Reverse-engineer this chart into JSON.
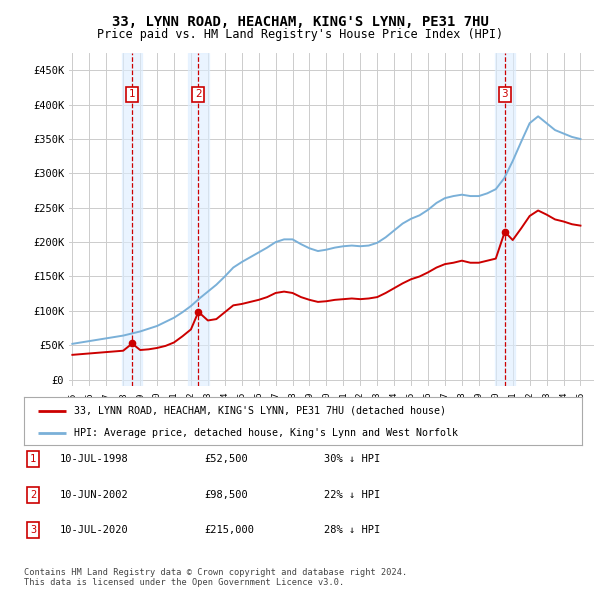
{
  "title": "33, LYNN ROAD, HEACHAM, KING'S LYNN, PE31 7HU",
  "subtitle": "Price paid vs. HM Land Registry's House Price Index (HPI)",
  "yticks": [
    0,
    50000,
    100000,
    150000,
    200000,
    250000,
    300000,
    350000,
    400000,
    450000
  ],
  "ytick_labels": [
    "£0",
    "£50K",
    "£100K",
    "£150K",
    "£200K",
    "£250K",
    "£300K",
    "£350K",
    "£400K",
    "£450K"
  ],
  "xlim_start": 1994.8,
  "xlim_end": 2025.8,
  "ylim_min": -10000,
  "ylim_max": 475000,
  "sale_dates": [
    1998.53,
    2002.44,
    2020.53
  ],
  "sale_prices": [
    52500,
    98500,
    215000
  ],
  "sale_labels": [
    "1",
    "2",
    "3"
  ],
  "sale_label_color": "#cc0000",
  "hpi_color": "#7ab0d8",
  "price_color": "#cc0000",
  "background_color": "#ffffff",
  "grid_color": "#cccccc",
  "shade_color": "#ddeeff",
  "legend_line1": "33, LYNN ROAD, HEACHAM, KING'S LYNN, PE31 7HU (detached house)",
  "legend_line2": "HPI: Average price, detached house, King's Lynn and West Norfolk",
  "table_data": [
    [
      "1",
      "10-JUL-1998",
      "£52,500",
      "30% ↓ HPI"
    ],
    [
      "2",
      "10-JUN-2002",
      "£98,500",
      "22% ↓ HPI"
    ],
    [
      "3",
      "10-JUL-2020",
      "£215,000",
      "28% ↓ HPI"
    ]
  ],
  "footnote": "Contains HM Land Registry data © Crown copyright and database right 2024.\nThis data is licensed under the Open Government Licence v3.0.",
  "hpi_x": [
    1995,
    1995.5,
    1996,
    1996.5,
    1997,
    1997.5,
    1998,
    1998.5,
    1999,
    1999.5,
    2000,
    2000.5,
    2001,
    2001.5,
    2002,
    2002.5,
    2003,
    2003.5,
    2004,
    2004.5,
    2005,
    2005.5,
    2006,
    2006.5,
    2007,
    2007.5,
    2008,
    2008.5,
    2009,
    2009.5,
    2010,
    2010.5,
    2011,
    2011.5,
    2012,
    2012.5,
    2013,
    2013.5,
    2014,
    2014.5,
    2015,
    2015.5,
    2016,
    2016.5,
    2017,
    2017.5,
    2018,
    2018.5,
    2019,
    2019.5,
    2020,
    2020.5,
    2021,
    2021.5,
    2022,
    2022.5,
    2023,
    2023.5,
    2024,
    2024.5,
    2025
  ],
  "hpi_y": [
    52000,
    54000,
    56000,
    58000,
    60000,
    62000,
    64000,
    67000,
    70000,
    74000,
    78000,
    84000,
    90000,
    98000,
    107000,
    118000,
    128000,
    138000,
    150000,
    163000,
    171000,
    178000,
    185000,
    192000,
    200000,
    204000,
    204000,
    197000,
    191000,
    187000,
    189000,
    192000,
    194000,
    195000,
    194000,
    195000,
    199000,
    207000,
    217000,
    227000,
    234000,
    239000,
    247000,
    257000,
    264000,
    267000,
    269000,
    267000,
    267000,
    271000,
    277000,
    293000,
    318000,
    346000,
    373000,
    383000,
    373000,
    363000,
    358000,
    353000,
    350000
  ],
  "price_x": [
    1995,
    1995.5,
    1996,
    1996.5,
    1997,
    1997.5,
    1998,
    1998.53,
    1999,
    1999.5,
    2000,
    2000.5,
    2001,
    2001.5,
    2002,
    2002.44,
    2003,
    2003.5,
    2004,
    2004.5,
    2005,
    2005.5,
    2006,
    2006.5,
    2007,
    2007.5,
    2008,
    2008.5,
    2009,
    2009.5,
    2010,
    2010.5,
    2011,
    2011.5,
    2012,
    2012.5,
    2013,
    2013.5,
    2014,
    2014.5,
    2015,
    2015.5,
    2016,
    2016.5,
    2017,
    2017.5,
    2018,
    2018.5,
    2019,
    2019.5,
    2020,
    2020.53,
    2021,
    2021.5,
    2022,
    2022.5,
    2023,
    2023.5,
    2024,
    2024.5,
    2025
  ],
  "price_y": [
    36000,
    37000,
    38000,
    39000,
    40000,
    41000,
    42000,
    52500,
    43000,
    44000,
    46000,
    49000,
    54000,
    63000,
    73000,
    98500,
    86000,
    88000,
    98000,
    108000,
    110000,
    113000,
    116000,
    120000,
    126000,
    128000,
    126000,
    120000,
    116000,
    113000,
    114000,
    116000,
    117000,
    118000,
    117000,
    118000,
    120000,
    126000,
    133000,
    140000,
    146000,
    150000,
    156000,
    163000,
    168000,
    170000,
    173000,
    170000,
    170000,
    173000,
    176000,
    215000,
    203000,
    220000,
    238000,
    246000,
    240000,
    233000,
    230000,
    226000,
    224000
  ]
}
